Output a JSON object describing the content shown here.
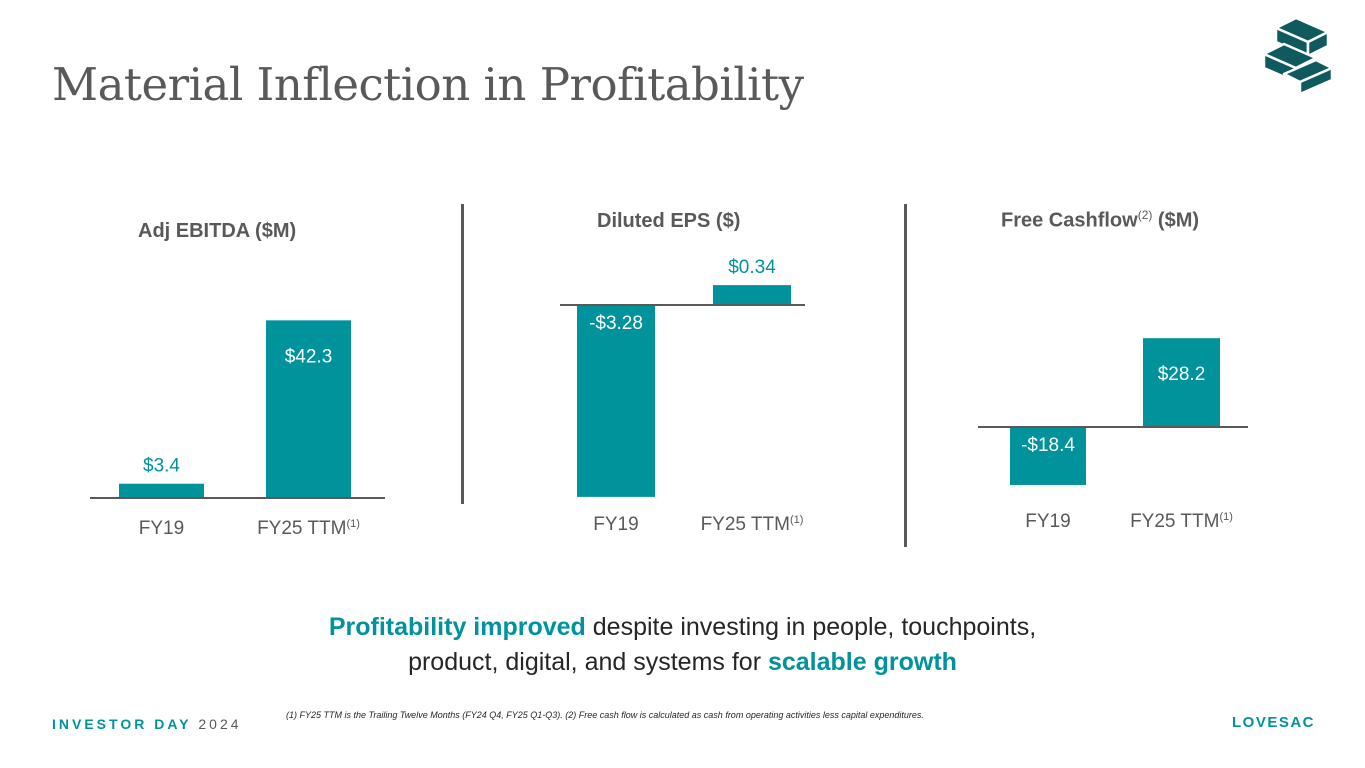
{
  "slide": {
    "title": "Material Inflection in Profitability",
    "message_hl1": "Profitability improved",
    "message_mid": " despite investing in people, touchpoints,",
    "message_line2": "product, digital, and systems for ",
    "message_hl2": "scalable growth",
    "footer_bold": "INVESTOR DAY",
    "footer_year": "2024",
    "footnote": "(1) FY25 TTM is the Trailing Twelve Months (FY24 Q4, FY25 Q1-Q3). (2) Free cash flow is calculated as cash from operating activities less capital expenditures.",
    "brand": "LOVESAC",
    "accent_color": "#00939C",
    "text_color": "#595959",
    "logo_icon": "stacked-blocks-logo-icon"
  },
  "chart_data": [
    {
      "type": "bar",
      "title": "Adj EBITDA ($M)",
      "title_sup": "",
      "title_suffix": "",
      "categories": [
        "FY19",
        "FY25 TTM"
      ],
      "category_sups": [
        "",
        "(1)"
      ],
      "values": [
        3.4,
        42.3
      ],
      "labels": [
        "$3.4",
        "$42.3"
      ]
    },
    {
      "type": "bar",
      "title": "Diluted EPS ($)",
      "title_sup": "",
      "title_suffix": "",
      "categories": [
        "FY19",
        "FY25 TTM"
      ],
      "category_sups": [
        "",
        "(1)"
      ],
      "values": [
        -3.28,
        0.34
      ],
      "labels": [
        "-$3.28",
        "$0.34"
      ]
    },
    {
      "type": "bar",
      "title": "Free Cashflow",
      "title_sup": "(2)",
      "title_suffix": " ($M)",
      "categories": [
        "FY19",
        "FY25 TTM"
      ],
      "category_sups": [
        "",
        "(1)"
      ],
      "values": [
        -18.4,
        28.2
      ],
      "labels": [
        "-$18.4",
        "$28.2"
      ]
    }
  ]
}
